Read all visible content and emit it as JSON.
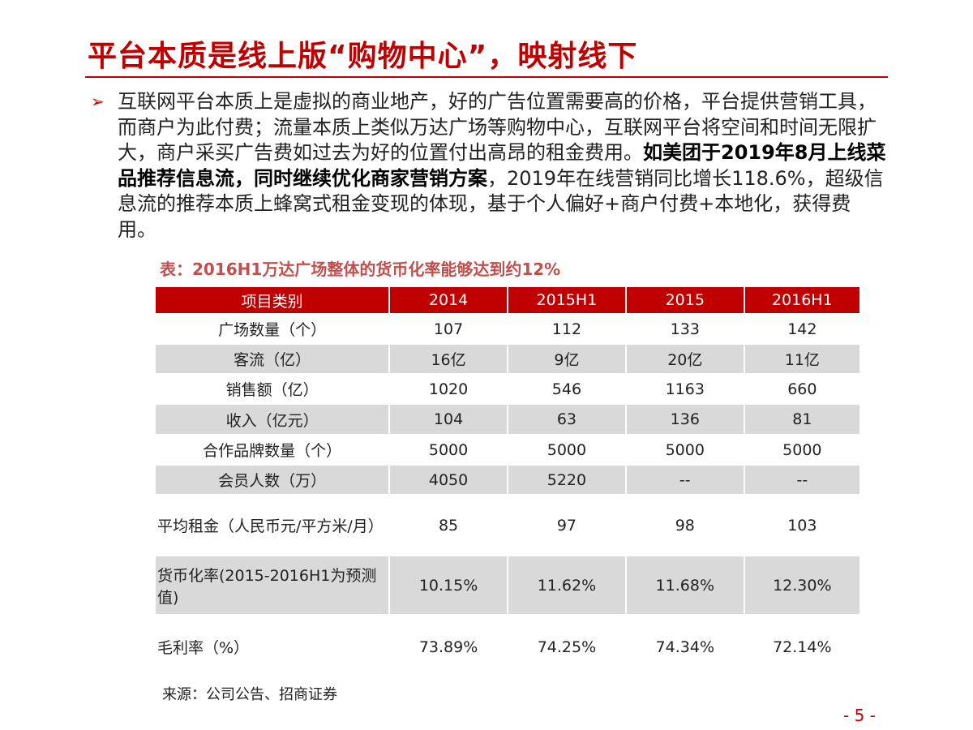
{
  "header": {
    "title": "平台本质是线上版“购物中心”，映射线下"
  },
  "bullet": {
    "segments": [
      {
        "text": "互联网平台本质上是虚拟的商业地产，好的广告位置需要高的价格，平台提供营销工具，而商户为此付费；流量本质上类似万达广场等购物中心，互联网平台将空间和时间无限扩大，商户采买广告费如过去为好的位置付出高昂的租金费用。",
        "bold": false
      },
      {
        "text": "如美团于2019年8月上线菜品推荐信息流，同时继续优化商家营销方案",
        "bold": true
      },
      {
        "text": "，2019年在线营销同比增长118.6%，超级信息流的推荐本质上蜂窝式租金变现的体现，基于个人偏好+商户付费+本地化，获得费用。",
        "bold": false
      }
    ]
  },
  "table": {
    "caption": "表：2016H1万达广场整体的货币化率能够达到约12%",
    "header": [
      "项目类别",
      "2014",
      "2015H1",
      "2015",
      "2016H1"
    ],
    "rows": [
      [
        "广场数量（个）",
        "107",
        "112",
        "133",
        "142"
      ],
      [
        "客流（亿）",
        "16亿",
        "9亿",
        "20亿",
        "11亿"
      ],
      [
        "销售额（亿）",
        "1020",
        "546",
        "1163",
        "660"
      ],
      [
        "收入（亿元）",
        "104",
        "63",
        "136",
        "81"
      ],
      [
        "合作品牌数量（个）",
        "5000",
        "5000",
        "5000",
        "5000"
      ],
      [
        "会员人数（万）",
        "4050",
        "5220",
        "--",
        "--"
      ],
      [
        "平均租金（人民币元/平方米/月）",
        "85",
        "97",
        "98",
        "103"
      ],
      [
        "货币化率(2015-2016H1为预测值)",
        "10.15%",
        "11.62%",
        "11.68%",
        "12.30%"
      ],
      [
        "毛利率（%）",
        "73.89%",
        "74.25%",
        "74.34%",
        "72.14%"
      ]
    ]
  },
  "source": "来源：公司公告、招商证券",
  "page_number": "- 5 -"
}
